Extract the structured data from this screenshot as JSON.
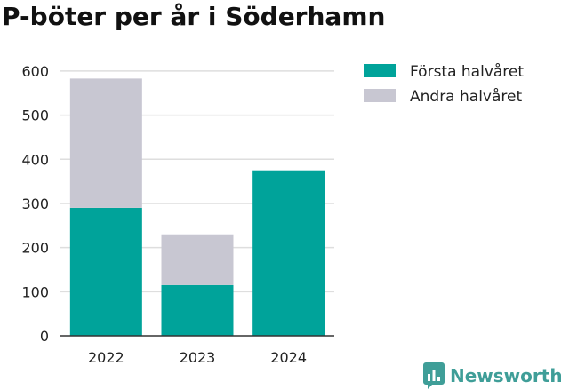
{
  "chart_data": {
    "type": "bar",
    "stacked": true,
    "title": "P-böter per år i Söderhamn",
    "categories": [
      "2022",
      "2023",
      "2024"
    ],
    "series": [
      {
        "name": "Första halvåret",
        "color": "#00a39a",
        "values": [
          290,
          115,
          375
        ]
      },
      {
        "name": "Andra halvåret",
        "color": "#c8c7d2",
        "values": [
          293,
          115,
          0
        ]
      }
    ],
    "yticks": [
      "0",
      "100",
      "200",
      "300",
      "400",
      "500",
      "600"
    ],
    "ylim": [
      0,
      620
    ],
    "grid": true,
    "legend_position": "top-right"
  },
  "branding": {
    "name": "Newsworthy",
    "color": "#3f9e98",
    "icon": "newsworthy-logo-icon"
  }
}
